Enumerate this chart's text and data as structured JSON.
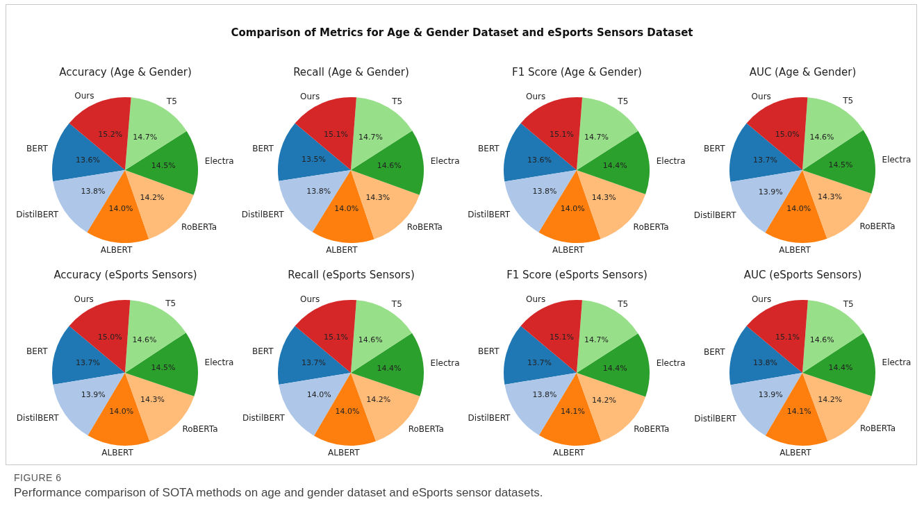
{
  "chart_data": [
    {
      "type": "other",
      "title": "Comparison of Metrics for Age & Gender Dataset and eSports Sensors Dataset"
    },
    {
      "type": "pie",
      "title": "Accuracy (Age & Gender)",
      "categories": [
        "BERT",
        "DistilBERT",
        "ALBERT",
        "RoBERTa",
        "Electra",
        "T5",
        "Ours"
      ],
      "values": [
        13.6,
        13.8,
        14.0,
        14.2,
        14.5,
        14.7,
        15.2
      ],
      "value_labels": [
        "13.6%",
        "13.8%",
        "14.0%",
        "14.2%",
        "14.5%",
        "14.7%",
        "15.2%"
      ],
      "colors": [
        "#1f77b4",
        "#aec7e8",
        "#ff7f0e",
        "#ffbb78",
        "#2ca02c",
        "#98df8a",
        "#d62728"
      ]
    },
    {
      "type": "pie",
      "title": "Recall (Age & Gender)",
      "categories": [
        "BERT",
        "DistilBERT",
        "ALBERT",
        "RoBERTa",
        "Electra",
        "T5",
        "Ours"
      ],
      "values": [
        13.5,
        13.8,
        14.0,
        14.3,
        14.6,
        14.7,
        15.1
      ],
      "value_labels": [
        "13.5%",
        "13.8%",
        "14.0%",
        "14.3%",
        "14.6%",
        "14.7%",
        "15.1%"
      ],
      "colors": [
        "#1f77b4",
        "#aec7e8",
        "#ff7f0e",
        "#ffbb78",
        "#2ca02c",
        "#98df8a",
        "#d62728"
      ]
    },
    {
      "type": "pie",
      "title": "F1 Score (Age & Gender)",
      "categories": [
        "BERT",
        "DistilBERT",
        "ALBERT",
        "RoBERTa",
        "Electra",
        "T5",
        "Ours"
      ],
      "values": [
        13.6,
        13.8,
        14.0,
        14.3,
        14.4,
        14.7,
        15.1
      ],
      "value_labels": [
        "13.6%",
        "13.8%",
        "14.0%",
        "14.3%",
        "14.4%",
        "14.7%",
        "15.1%"
      ],
      "colors": [
        "#1f77b4",
        "#aec7e8",
        "#ff7f0e",
        "#ffbb78",
        "#2ca02c",
        "#98df8a",
        "#d62728"
      ]
    },
    {
      "type": "pie",
      "title": "AUC (Age & Gender)",
      "categories": [
        "BERT",
        "DistilBERT",
        "ALBERT",
        "RoBERTa",
        "Electra",
        "T5",
        "Ours"
      ],
      "values": [
        13.7,
        13.9,
        14.0,
        14.3,
        14.5,
        14.6,
        15.0
      ],
      "value_labels": [
        "13.7%",
        "13.9%",
        "14.0%",
        "14.3%",
        "14.5%",
        "14.6%",
        "15.0%"
      ],
      "colors": [
        "#1f77b4",
        "#aec7e8",
        "#ff7f0e",
        "#ffbb78",
        "#2ca02c",
        "#98df8a",
        "#d62728"
      ]
    },
    {
      "type": "pie",
      "title": "Accuracy (eSports Sensors)",
      "categories": [
        "BERT",
        "DistilBERT",
        "ALBERT",
        "RoBERTa",
        "Electra",
        "T5",
        "Ours"
      ],
      "values": [
        13.7,
        13.9,
        14.0,
        14.3,
        14.5,
        14.6,
        15.0
      ],
      "value_labels": [
        "13.7%",
        "13.9%",
        "14.0%",
        "14.3%",
        "14.5%",
        "14.6%",
        "15.0%"
      ],
      "colors": [
        "#1f77b4",
        "#aec7e8",
        "#ff7f0e",
        "#ffbb78",
        "#2ca02c",
        "#98df8a",
        "#d62728"
      ]
    },
    {
      "type": "pie",
      "title": "Recall (eSports Sensors)",
      "categories": [
        "BERT",
        "DistilBERT",
        "ALBERT",
        "RoBERTa",
        "Electra",
        "T5",
        "Ours"
      ],
      "values": [
        13.7,
        14.0,
        14.0,
        14.2,
        14.4,
        14.6,
        15.1
      ],
      "value_labels": [
        "13.7%",
        "14.0%",
        "14.0%",
        "14.2%",
        "14.4%",
        "14.6%",
        "15.1%"
      ],
      "colors": [
        "#1f77b4",
        "#aec7e8",
        "#ff7f0e",
        "#ffbb78",
        "#2ca02c",
        "#98df8a",
        "#d62728"
      ]
    },
    {
      "type": "pie",
      "title": "F1 Score (eSports Sensors)",
      "categories": [
        "BERT",
        "DistilBERT",
        "ALBERT",
        "RoBERTa",
        "Electra",
        "T5",
        "Ours"
      ],
      "values": [
        13.7,
        13.8,
        14.1,
        14.2,
        14.4,
        14.7,
        15.1
      ],
      "value_labels": [
        "13.7%",
        "13.8%",
        "14.1%",
        "14.2%",
        "14.4%",
        "14.7%",
        "15.1%"
      ],
      "colors": [
        "#1f77b4",
        "#aec7e8",
        "#ff7f0e",
        "#ffbb78",
        "#2ca02c",
        "#98df8a",
        "#d62728"
      ]
    },
    {
      "type": "pie",
      "title": "AUC (eSports Sensors)",
      "categories": [
        "BERT",
        "DistilBERT",
        "ALBERT",
        "RoBERTa",
        "Electra",
        "T5",
        "Ours"
      ],
      "values": [
        13.8,
        13.9,
        14.1,
        14.2,
        14.4,
        14.6,
        15.1
      ],
      "value_labels": [
        "13.8%",
        "13.9%",
        "14.1%",
        "14.2%",
        "14.4%",
        "14.6%",
        "15.1%"
      ],
      "colors": [
        "#1f77b4",
        "#aec7e8",
        "#ff7f0e",
        "#ffbb78",
        "#2ca02c",
        "#98df8a",
        "#d62728"
      ]
    },
    {
      "type": "other",
      "annotations": [
        "FIGURE 6",
        "Performance comparison of SOTA methods on age and gender dataset and eSports sensor datasets."
      ]
    }
  ]
}
